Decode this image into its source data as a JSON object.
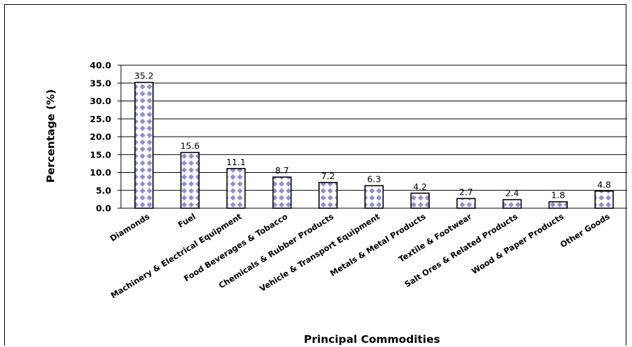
{
  "chart_data": {
    "type": "bar",
    "title": "",
    "xlabel": "Principal Commodities",
    "ylabel": "Percentage (%)",
    "ylim": [
      0,
      40
    ],
    "yticks": [
      "0.0",
      "5.0",
      "10.0",
      "15.0",
      "20.0",
      "25.0",
      "30.0",
      "35.0",
      "40.0"
    ],
    "grid": true,
    "categories": [
      "Diamonds",
      "Fuel",
      "Machinery & Electrical Equipment",
      "Food Beverages & Tobacco",
      "Chemicals & Rubber Products",
      "Vehicle & Transport Equipment",
      "Metals & Metal Products",
      "Textile & Footwear",
      "Salt Ores & Related Products",
      "Wood & Paper Products",
      "Other Goods"
    ],
    "values": [
      35.2,
      15.6,
      11.1,
      8.7,
      7.2,
      6.3,
      4.2,
      2.7,
      2.4,
      1.8,
      4.8
    ],
    "data_labels": [
      "35.2",
      "15.6",
      "11.1",
      "8.7",
      "7.2",
      "6.3",
      "4.2",
      "2.7",
      "2.4",
      "1.8",
      "4.8"
    ],
    "bar_fill": "#ffffff",
    "bar_pattern_color": "#8b8fd6",
    "bar_edge_color": "#000000"
  }
}
